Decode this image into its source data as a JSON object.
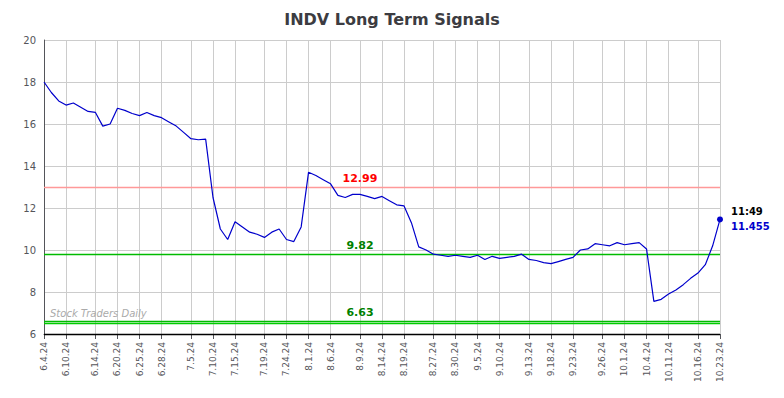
{
  "chart_data": {
    "type": "line",
    "title": "INDV Long Term Signals",
    "categories": [
      "6.4.24",
      null,
      null,
      "6.10.24",
      null,
      null,
      null,
      "6.14.24",
      null,
      null,
      "6.20.24",
      null,
      null,
      "6.25.24",
      null,
      null,
      "6.28.24",
      null,
      null,
      null,
      "7.5.24",
      null,
      null,
      "7.10.24",
      null,
      null,
      "7.15.24",
      null,
      null,
      null,
      "7.19.24",
      null,
      null,
      "7.24.24",
      null,
      null,
      "8.1.24",
      null,
      null,
      "8.6.24",
      null,
      null,
      null,
      "8.9.24",
      null,
      null,
      "8.14.24",
      null,
      null,
      "8.19.24",
      null,
      null,
      null,
      "8.27.24",
      null,
      null,
      "8.30.24",
      null,
      null,
      "9.5.24",
      null,
      null,
      "9.10.24",
      null,
      null,
      null,
      "9.13.24",
      null,
      null,
      "9.18.24",
      null,
      null,
      "9.23.24",
      null,
      null,
      null,
      "9.26.24",
      null,
      null,
      "10.1.24",
      null,
      null,
      "10.4.24",
      null,
      null,
      "10.11.24",
      null,
      null,
      null,
      "10.16.24",
      null,
      null,
      "10.23.24"
    ],
    "values": [
      18.0,
      17.5,
      17.1,
      16.9,
      17.0,
      16.8,
      16.6,
      16.55,
      15.9,
      16.0,
      16.75,
      16.65,
      16.5,
      16.4,
      16.55,
      16.4,
      16.3,
      16.1,
      15.9,
      15.6,
      15.3,
      15.25,
      15.28,
      12.5,
      11.0,
      10.5,
      11.35,
      11.1,
      10.85,
      10.75,
      10.6,
      10.85,
      11.0,
      10.5,
      10.4,
      11.1,
      13.7,
      13.55,
      13.35,
      13.15,
      12.6,
      12.5,
      12.65,
      12.65,
      12.55,
      12.45,
      12.55,
      12.35,
      12.15,
      12.1,
      11.3,
      10.15,
      10.0,
      9.8,
      9.75,
      9.7,
      9.75,
      9.7,
      9.65,
      9.75,
      9.55,
      9.7,
      9.6,
      9.65,
      9.7,
      9.8,
      9.55,
      9.5,
      9.4,
      9.35,
      9.45,
      9.55,
      9.65,
      10.0,
      10.05,
      10.3,
      10.25,
      10.2,
      10.35,
      10.25,
      10.3,
      10.35,
      10.05,
      7.55,
      7.65,
      7.9,
      8.1,
      8.35,
      8.65,
      8.9,
      9.3,
      10.2,
      11.455
    ],
    "color": "#0000cc",
    "ylim": [
      6,
      20
    ],
    "yticks": [
      6,
      8,
      10,
      12,
      14,
      16,
      18,
      20
    ],
    "grid": true,
    "hlines": [
      {
        "y": 12.99,
        "color": "#ff9999",
        "label": "12.99",
        "label_color": "red"
      },
      {
        "y": 9.82,
        "color": "#00bb00",
        "label": "9.82",
        "label_color": "green"
      },
      {
        "y": 6.63,
        "color": "#00bb00",
        "label": "6.63",
        "label_color": "green"
      },
      {
        "y": 6.5,
        "color": "#00cc00"
      },
      {
        "y": 6,
        "color": "black"
      }
    ],
    "hline_label_at": "8.9.24",
    "last_point": {
      "time": "11:49",
      "label": "11.455"
    },
    "watermark": {
      "text": "Stock Traders Daily",
      "color": "#aaaaaa"
    }
  }
}
